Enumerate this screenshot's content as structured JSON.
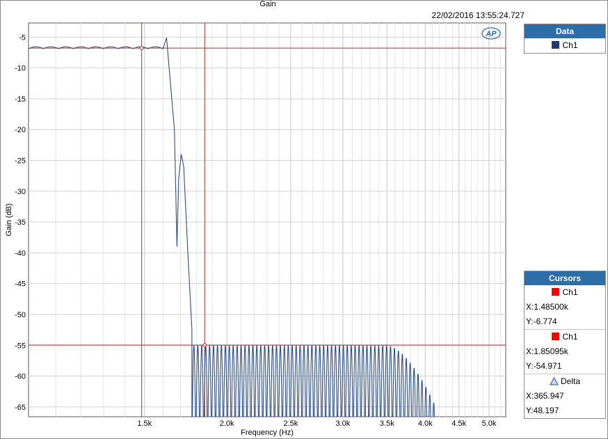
{
  "header": {
    "title": "Gain",
    "timestamp": "22/02/2016 13:55:24.727",
    "logo_text": "AP"
  },
  "chart_data": {
    "type": "line",
    "title": "Gain",
    "xlabel": "Frequency (Hz)",
    "ylabel": "Gain (dB)",
    "xscale": "log",
    "xlim": [
      1000,
      5300
    ],
    "ylim": [
      -66.6,
      -2.7
    ],
    "grid": true,
    "x_ticks": [
      {
        "value": 1500,
        "label": "1.5k"
      },
      {
        "value": 2000,
        "label": "2.0k"
      },
      {
        "value": 2500,
        "label": "2.5k"
      },
      {
        "value": 3000,
        "label": "3.0k"
      },
      {
        "value": 3500,
        "label": "3.5k"
      },
      {
        "value": 4000,
        "label": "4.0k"
      },
      {
        "value": 4500,
        "label": "4.5k"
      },
      {
        "value": 5000,
        "label": "5.0k"
      }
    ],
    "y_ticks": [
      -5,
      -10,
      -15,
      -20,
      -25,
      -30,
      -35,
      -40,
      -45,
      -50,
      -55,
      -60,
      -65
    ],
    "series": [
      {
        "name": "Ch1",
        "color": "#2b4c8c",
        "passband": {
          "x_range": [
            1000,
            1600
          ],
          "mean": -6.75,
          "ripple": 0.3,
          "lobes": 9
        },
        "peak": {
          "x": 1620,
          "y": -5.1
        },
        "transition": [
          [
            1620,
            -5.1
          ],
          [
            1665,
            -20.0
          ],
          [
            1680,
            -39.0
          ],
          [
            1690,
            -28.0
          ],
          [
            1705,
            -24.0
          ],
          [
            1720,
            -26.0
          ],
          [
            1745,
            -40.0
          ],
          [
            1770,
            -52.5
          ]
        ],
        "stopband": {
          "x_range": [
            1770,
            3950
          ],
          "peak_level": -55.0,
          "floor": -66.6,
          "lobes": 55
        },
        "tail": {
          "x_range": [
            3500,
            4150
          ],
          "peak_start": -55.0,
          "peak_end": -65.0
        }
      }
    ],
    "cursors": [
      {
        "x": 1485,
        "y": -6.774,
        "color": "#d21f1f"
      },
      {
        "x": 1850.95,
        "y": -54.971,
        "color": "#d21f1f"
      }
    ]
  },
  "data_panel": {
    "title": "Data",
    "items": [
      {
        "label": "Ch1",
        "color": "#1d3c73"
      }
    ]
  },
  "cursors_panel": {
    "title": "Cursors",
    "entries": [
      {
        "label": "Ch1",
        "color": "#ff0000",
        "x_text": "X:1.48500k",
        "y_text": "Y:-6.774"
      },
      {
        "label": "Ch1",
        "color": "#ff0000",
        "x_text": "X:1.85095k",
        "y_text": "Y:-54.971"
      }
    ],
    "delta": {
      "label": "Delta",
      "x_text": "X:365.947",
      "y_text": "Y:48.197"
    }
  }
}
